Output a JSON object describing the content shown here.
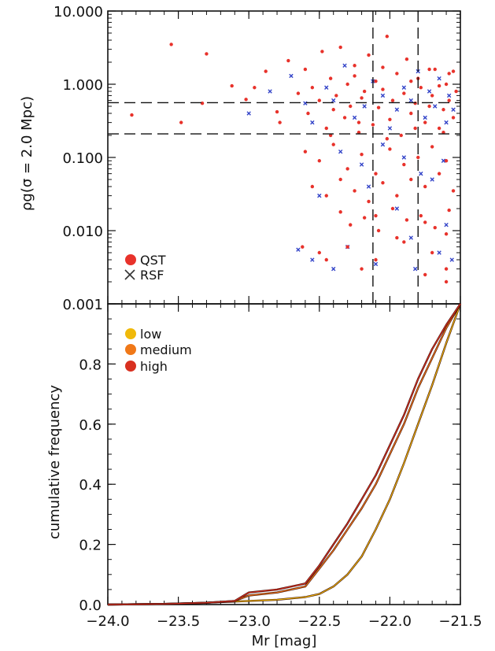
{
  "chart_data": [
    {
      "type": "scatter",
      "panel": "top",
      "title": "",
      "xlabel": "",
      "ylabel": "ρg(σ = 2.0 Mpc)",
      "xlim": [
        -24.0,
        -21.5
      ],
      "ylim": [
        0.001,
        10.0
      ],
      "yscale": "log",
      "ytick_labels": [
        "0.001",
        "0.010",
        "0.100",
        "1.000",
        "10.000"
      ],
      "ytick_values": [
        0.001,
        0.01,
        0.1,
        1.0,
        10.0
      ],
      "xtick_values": [
        -24.0,
        -23.5,
        -23.0,
        -22.5,
        -22.0,
        -21.5
      ],
      "reference_lines": {
        "vertical_x": [
          -22.12,
          -21.8
        ],
        "horizontal_y": [
          0.21,
          0.56
        ],
        "style": "dashed"
      },
      "legend": {
        "placement": "bottom-left",
        "entries": [
          {
            "label": "QST",
            "marker": "filled-circle",
            "color": "#e8322b"
          },
          {
            "label": "RSF",
            "marker": "x",
            "color": "#3243c8"
          }
        ]
      },
      "series": [
        {
          "name": "QST",
          "color": "#e8322b",
          "x": [
            -23.83,
            -23.55,
            -23.48,
            -23.33,
            -23.3,
            -23.12,
            -23.02,
            -22.96,
            -22.88,
            -22.8,
            -22.78,
            -22.72,
            -22.65,
            -22.6,
            -22.58,
            -22.55,
            -22.5,
            -22.48,
            -22.45,
            -22.42,
            -22.4,
            -22.38,
            -22.35,
            -22.32,
            -22.3,
            -22.28,
            -22.25,
            -22.22,
            -22.2,
            -22.18,
            -22.15,
            -22.12,
            -22.1,
            -22.08,
            -22.05,
            -22.02,
            -22.0,
            -21.98,
            -21.95,
            -21.92,
            -21.9,
            -21.88,
            -21.85,
            -21.82,
            -21.8,
            -21.78,
            -21.75,
            -21.72,
            -21.7,
            -21.68,
            -21.65,
            -21.62,
            -21.6,
            -21.58,
            -21.55,
            -21.53,
            -22.6,
            -22.5,
            -22.4,
            -22.3,
            -22.2,
            -22.1,
            -22.0,
            -21.9,
            -21.8,
            -21.7,
            -21.6,
            -22.55,
            -22.45,
            -22.35,
            -22.25,
            -22.15,
            -22.05,
            -21.95,
            -21.85,
            -21.75,
            -21.65,
            -21.55,
            -22.35,
            -22.28,
            -22.18,
            -22.08,
            -21.98,
            -21.88,
            -21.78,
            -21.68,
            -21.58,
            -22.42,
            -22.22,
            -22.02,
            -21.82,
            -21.62,
            -22.5,
            -22.3,
            -22.1,
            -21.9,
            -21.7,
            -21.6,
            -22.25,
            -22.05,
            -21.85,
            -21.65,
            -21.55,
            -22.1,
            -21.95,
            -21.75,
            -21.6,
            -21.72,
            -21.58,
            -22.45,
            -22.2,
            -21.75,
            -22.62,
            -21.6
          ],
          "y": [
            0.38,
            3.5,
            0.3,
            0.55,
            2.6,
            0.95,
            0.62,
            0.9,
            1.5,
            0.42,
            0.3,
            2.1,
            0.75,
            1.6,
            0.4,
            0.9,
            0.6,
            2.8,
            0.25,
            1.2,
            0.45,
            0.7,
            3.2,
            0.35,
            1.0,
            0.5,
            1.8,
            0.22,
            0.65,
            0.8,
            2.5,
            0.28,
            1.1,
            0.48,
            0.85,
            4.5,
            0.33,
            0.6,
            1.4,
            0.2,
            0.75,
            2.2,
            0.4,
            0.55,
            1.2,
            0.9,
            0.3,
            0.5,
            0.7,
            1.6,
            0.25,
            0.45,
            1.0,
            0.6,
            0.35,
            0.8,
            0.12,
            0.09,
            0.15,
            0.07,
            0.11,
            0.06,
            0.13,
            0.08,
            0.1,
            0.14,
            0.09,
            0.04,
            0.03,
            0.05,
            0.035,
            0.025,
            0.045,
            0.03,
            0.05,
            0.04,
            0.06,
            0.035,
            0.018,
            0.012,
            0.015,
            0.01,
            0.02,
            0.014,
            0.016,
            0.011,
            0.019,
            0.2,
            0.3,
            0.18,
            0.25,
            0.22,
            0.005,
            0.006,
            0.004,
            0.007,
            0.005,
            0.003,
            1.3,
            1.7,
            1.1,
            0.95,
            1.5,
            0.016,
            0.008,
            0.013,
            0.009,
            1.6,
            1.4,
            0.004,
            0.003,
            0.0025,
            0.006,
            0.002
          ]
        },
        {
          "name": "RSF",
          "color": "#3243c8",
          "x": [
            -23.0,
            -22.85,
            -22.7,
            -22.6,
            -22.55,
            -22.45,
            -22.4,
            -22.32,
            -22.25,
            -22.18,
            -22.12,
            -22.05,
            -22.0,
            -21.95,
            -21.9,
            -21.85,
            -21.8,
            -21.75,
            -21.72,
            -21.68,
            -21.65,
            -21.6,
            -21.58,
            -21.55,
            -22.35,
            -22.2,
            -22.05,
            -21.9,
            -21.78,
            -21.62,
            -22.5,
            -22.15,
            -21.95,
            -21.7,
            -21.6,
            -22.3,
            -21.85,
            -21.65,
            -22.65,
            -22.55,
            -22.4,
            -22.1,
            -21.82,
            -21.56
          ],
          "y": [
            0.4,
            0.8,
            1.3,
            0.55,
            0.3,
            0.9,
            0.6,
            1.8,
            0.35,
            0.5,
            1.1,
            0.7,
            0.25,
            0.45,
            0.9,
            0.6,
            1.5,
            0.35,
            0.8,
            0.5,
            1.2,
            0.3,
            0.7,
            0.45,
            0.12,
            0.08,
            0.15,
            0.1,
            0.06,
            0.09,
            0.03,
            0.04,
            0.02,
            0.05,
            0.012,
            0.006,
            0.008,
            0.005,
            0.0055,
            0.004,
            0.003,
            0.0035,
            0.003,
            0.004
          ]
        }
      ]
    },
    {
      "type": "line",
      "panel": "bottom",
      "title": "",
      "xlabel": "Mr [mag]",
      "ylabel": "cumulative frequency",
      "xlim": [
        -24.0,
        -21.5
      ],
      "ylim": [
        0.0,
        1.0
      ],
      "xtick_labels": [
        "−24.0",
        "−23.5",
        "−23.0",
        "−22.5",
        "−22.0",
        "−21.5"
      ],
      "xtick_values": [
        -24.0,
        -23.5,
        -23.0,
        -22.5,
        -22.0,
        -21.5
      ],
      "ytick_labels": [
        "0.0",
        "0.2",
        "0.4",
        "0.6",
        "0.8"
      ],
      "ytick_values": [
        0.0,
        0.2,
        0.4,
        0.6,
        0.8
      ],
      "legend": {
        "placement": "top-left",
        "entries": [
          {
            "label": "low",
            "color": "#f0b90a"
          },
          {
            "label": "medium",
            "color": "#f07818"
          },
          {
            "label": "high",
            "color": "#d83020"
          }
        ]
      },
      "series": [
        {
          "name": "low",
          "color": "#f0b90a",
          "x": [
            -24.0,
            -23.6,
            -23.3,
            -23.1,
            -23.0,
            -22.8,
            -22.6,
            -22.5,
            -22.4,
            -22.3,
            -22.2,
            -22.1,
            -22.0,
            -21.9,
            -21.8,
            -21.7,
            -21.6,
            -21.5
          ],
          "y": [
            0.0,
            0.002,
            0.006,
            0.01,
            0.012,
            0.016,
            0.025,
            0.035,
            0.06,
            0.1,
            0.16,
            0.25,
            0.35,
            0.47,
            0.6,
            0.73,
            0.87,
            1.0
          ]
        },
        {
          "name": "medium",
          "color": "#f07818",
          "x": [
            -24.0,
            -23.6,
            -23.3,
            -23.1,
            -23.0,
            -22.8,
            -22.6,
            -22.5,
            -22.4,
            -22.3,
            -22.2,
            -22.1,
            -22.0,
            -21.9,
            -21.8,
            -21.7,
            -21.6,
            -21.5
          ],
          "y": [
            0.0,
            0.002,
            0.006,
            0.012,
            0.03,
            0.04,
            0.06,
            0.12,
            0.18,
            0.25,
            0.32,
            0.4,
            0.5,
            0.6,
            0.72,
            0.82,
            0.92,
            1.0
          ]
        },
        {
          "name": "high",
          "color": "#d83020",
          "x": [
            -24.0,
            -23.6,
            -23.3,
            -23.1,
            -23.0,
            -22.8,
            -22.6,
            -22.5,
            -22.4,
            -22.3,
            -22.2,
            -22.1,
            -22.0,
            -21.9,
            -21.8,
            -21.7,
            -21.6,
            -21.5
          ],
          "y": [
            0.0,
            0.002,
            0.006,
            0.012,
            0.04,
            0.05,
            0.07,
            0.13,
            0.2,
            0.27,
            0.35,
            0.43,
            0.53,
            0.63,
            0.75,
            0.85,
            0.93,
            1.0
          ]
        }
      ]
    }
  ]
}
